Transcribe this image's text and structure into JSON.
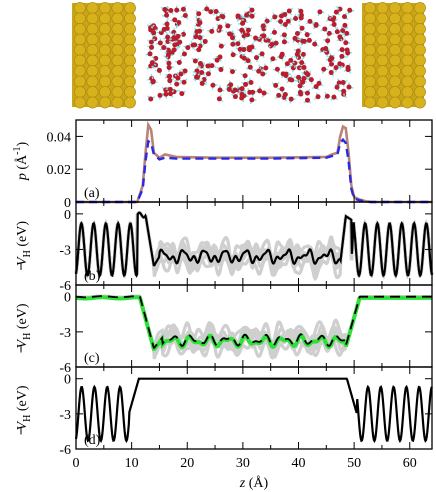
{
  "figure": {
    "panels": [
      {
        "id": "a",
        "tag": "(a)",
        "ylabel": {
          "sym": "p",
          "unit": " (Å",
          "exp": "-1",
          "close": ")"
        },
        "yticks": [
          "0.04",
          "0.02",
          "0"
        ]
      },
      {
        "id": "b",
        "tag": "(b)",
        "ylabel": {
          "sym": "V",
          "sub": "H",
          "unit": " (eV)"
        },
        "yticks": [
          "0",
          "-3",
          "-6"
        ]
      },
      {
        "id": "c",
        "tag": "(c)",
        "ylabel": {
          "sym": "V",
          "sub": "H",
          "unit": " (eV)"
        },
        "yticks": [
          "0",
          "-3",
          "-6"
        ]
      },
      {
        "id": "d",
        "tag": "(d)",
        "ylabel": {
          "sym": "V",
          "sub": "H",
          "unit": " (eV)"
        },
        "yticks": [
          "0",
          "-3",
          "-6"
        ]
      }
    ],
    "xticks": [
      "0",
      "10",
      "20",
      "30",
      "40",
      "50",
      "60"
    ],
    "xlabel": {
      "sym": "z",
      "unit": " (Å)"
    }
  },
  "colors": {
    "gold": "#d8b21c",
    "oxygen": "#b81e2e",
    "hydrogen": "#7fe4ea",
    "density_brown": "#b88476",
    "density_blue": "#2a2ae6",
    "green": "#2fe03a",
    "gray": "#cfcfcf"
  },
  "chart_data": [
    {
      "type": "line",
      "panel": "a",
      "xlim": [
        0,
        64
      ],
      "ylim": [
        0,
        0.05
      ],
      "series": [
        {
          "style": "solid-brown",
          "x": [
            11,
            12,
            12.5,
            13,
            13.5,
            14,
            15,
            16,
            18,
            25,
            35,
            45,
            46,
            47,
            47.5,
            48,
            48.5,
            49,
            49.5,
            50,
            51,
            52,
            53
          ],
          "y": [
            0,
            0.01,
            0.03,
            0.047,
            0.044,
            0.03,
            0.027,
            0.029,
            0.0275,
            0.027,
            0.027,
            0.0275,
            0.029,
            0.03,
            0.04,
            0.046,
            0.045,
            0.03,
            0.01,
            0.003,
            0.0015,
            0.0005,
            0
          ]
        },
        {
          "style": "dashed-blue",
          "x": [
            11,
            12,
            12.5,
            13,
            13.5,
            14,
            15,
            16,
            18,
            25,
            35,
            45,
            46,
            47,
            47.5,
            48,
            48.5,
            49,
            49.5,
            50,
            51,
            52,
            53
          ],
          "y": [
            0,
            0.008,
            0.025,
            0.037,
            0.036,
            0.029,
            0.026,
            0.027,
            0.0265,
            0.0265,
            0.0265,
            0.027,
            0.028,
            0.029,
            0.036,
            0.038,
            0.036,
            0.025,
            0.008,
            0.002,
            0.001,
            0.0003,
            0
          ]
        }
      ]
    },
    {
      "type": "line",
      "panel": "b",
      "xlim": [
        0,
        64
      ],
      "ylim": [
        -6,
        1
      ]
    },
    {
      "type": "line",
      "panel": "c",
      "xlim": [
        0,
        64
      ],
      "ylim": [
        -6,
        1
      ]
    },
    {
      "type": "line",
      "panel": "d",
      "xlim": [
        0,
        64
      ],
      "ylim": [
        -6,
        1
      ]
    }
  ]
}
